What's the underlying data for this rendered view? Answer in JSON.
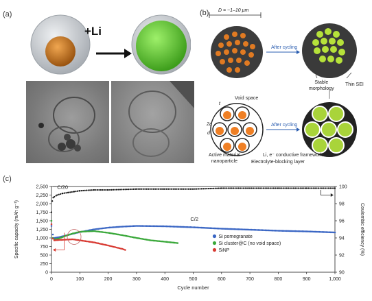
{
  "panel_a": {
    "label": "(a)",
    "reaction_label": "+Li",
    "colors": {
      "core": "#c97a2a",
      "expanded": "#6fd13a",
      "shell": "#b9bec4"
    }
  },
  "panel_b": {
    "label": "(b)",
    "diameter_label": "D = ~1–10 μm",
    "after_cycling_top": "After cycling",
    "after_cycling_bottom": "After cycling",
    "void_space": "Void space",
    "t_label": "t",
    "two_a_label": "2a",
    "d_label": "d",
    "stable_morphology": "Stable\nmorphology",
    "thin_sei": "Thin SEI",
    "framework": "Li, e⁻ conductive framework",
    "blocking_layer": "Electrolyte-blocking layer",
    "active_material": "Active material\nnanoparticle"
  },
  "panel_c": {
    "label": "(c)"
  },
  "chart_data": {
    "type": "scatter",
    "xlabel": "Cycle number",
    "ylabel": "Specific capacity (mAh g⁻¹)",
    "ylabel_right": "Coulombic efficiency (%)",
    "xlim": [
      0,
      1000
    ],
    "ylim": [
      0,
      2500
    ],
    "ylim_right": [
      90,
      100
    ],
    "x_ticks": [
      "0",
      "100",
      "200",
      "300",
      "400",
      "500",
      "600",
      "700",
      "800",
      "900",
      "1,000"
    ],
    "y_ticks": [
      "0",
      "250",
      "500",
      "750",
      "1,000",
      "1,250",
      "1,500",
      "1,750",
      "2,000",
      "2,250",
      "2,500"
    ],
    "y_ticks_right": [
      "90",
      "92",
      "94",
      "96",
      "98",
      "100"
    ],
    "annotations": [
      "C/20",
      "C/2"
    ],
    "legend": {
      "placement": "right",
      "entries": [
        "Si pomegranate",
        "Si cluster@C (no void space)",
        "SiNP"
      ]
    },
    "series": [
      {
        "name": "Si pomegranate",
        "color": "#3a66c4",
        "x": [
          0,
          5,
          10,
          25,
          50,
          75,
          100,
          150,
          200,
          250,
          300,
          400,
          500,
          600,
          700,
          800,
          900,
          1000
        ],
        "y": [
          1350,
          1100,
          1000,
          1020,
          1070,
          1120,
          1170,
          1250,
          1300,
          1330,
          1350,
          1340,
          1310,
          1270,
          1240,
          1210,
          1190,
          1160
        ]
      },
      {
        "name": "Si cluster@C (no void space)",
        "color": "#3aa83a",
        "x": [
          0,
          5,
          10,
          25,
          50,
          75,
          100,
          150,
          200,
          250,
          300,
          350,
          400,
          445
        ],
        "y": [
          1500,
          1000,
          960,
          980,
          1060,
          1130,
          1180,
          1200,
          1150,
          1080,
          1000,
          930,
          890,
          850
        ]
      },
      {
        "name": "SiNP",
        "color": "#d83a32",
        "x": [
          0,
          5,
          10,
          25,
          50,
          75,
          100,
          150,
          200,
          250,
          260
        ],
        "y": [
          1400,
          980,
          930,
          940,
          950,
          960,
          930,
          870,
          780,
          680,
          650
        ]
      },
      {
        "name": "Coulombic efficiency",
        "color": "#111111",
        "axis": "right",
        "x": [
          0,
          3,
          6,
          10,
          20,
          40,
          60,
          80,
          100,
          150,
          200,
          300,
          400,
          500,
          600,
          700,
          800,
          900,
          1000
        ],
        "y": [
          97.0,
          98.3,
          98.7,
          98.8,
          99.0,
          99.2,
          99.3,
          99.4,
          99.5,
          99.6,
          99.6,
          99.7,
          99.7,
          99.7,
          99.8,
          99.8,
          99.8,
          99.8,
          99.8
        ]
      }
    ]
  }
}
